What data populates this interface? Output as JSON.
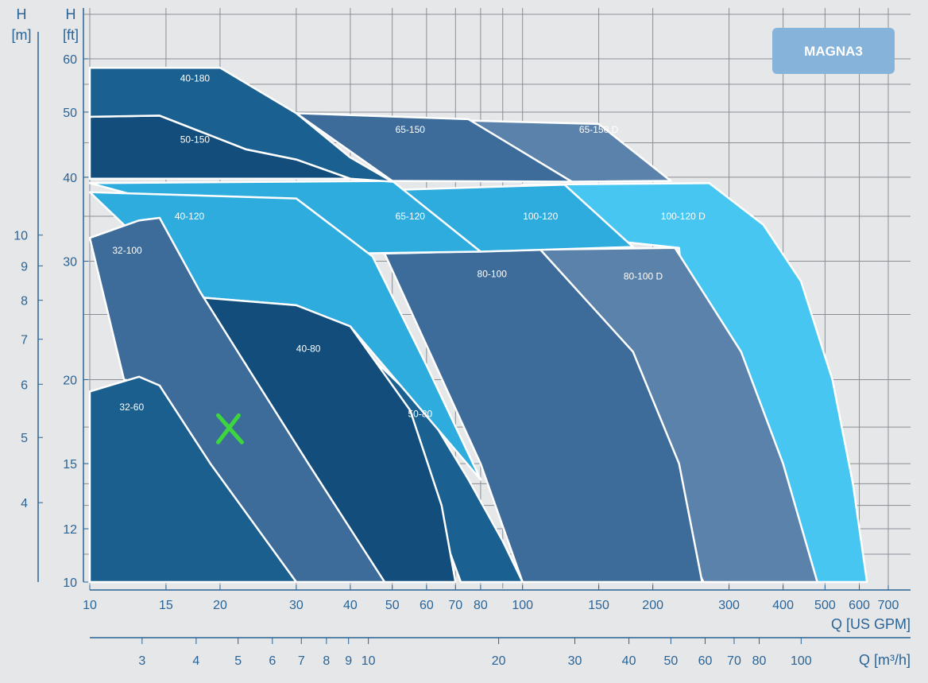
{
  "chart_data": {
    "type": "area",
    "badge": "MAGNA3",
    "x_axis": {
      "label": "Q [US GPM]",
      "scale": "log",
      "range": [
        10,
        700
      ],
      "ticks": [
        10,
        15,
        20,
        30,
        40,
        50,
        60,
        70,
        80,
        100,
        150,
        200,
        300,
        400,
        500,
        600,
        700
      ],
      "gridlines": [
        10,
        15,
        20,
        30,
        40,
        50,
        60,
        70,
        80,
        90,
        100,
        150,
        200,
        300,
        400,
        500,
        600,
        700
      ]
    },
    "x2_axis": {
      "label": "Q [m³/h]",
      "scale": "log",
      "ticks": [
        3,
        4,
        5,
        6,
        7,
        8,
        9,
        10,
        20,
        30,
        40,
        50,
        60,
        70,
        80,
        100
      ]
    },
    "y_axis": {
      "label_unit": "H",
      "label_dim": "[ft]",
      "scale": "log",
      "range": [
        10,
        60
      ],
      "ticks": [
        10,
        12,
        15,
        20,
        30,
        40,
        50,
        60
      ],
      "gridlines": [
        10,
        12,
        15,
        20,
        25,
        30,
        40,
        50,
        60
      ]
    },
    "y2_axis": {
      "label_unit": "H",
      "label_dim": "[m]",
      "scale": "log",
      "ticks": [
        4,
        5,
        6,
        7,
        8,
        9,
        10
      ]
    },
    "grid": true,
    "marker": {
      "label": "X",
      "x": 21,
      "y": 16.9,
      "color": "#3dd63d"
    },
    "series": [
      {
        "name": "100-120 D",
        "color": "#48c6f2",
        "label_at": [
          235,
          34.6
        ],
        "points": [
          [
            100,
            39.0
          ],
          [
            270,
            39.2
          ],
          [
            360,
            34
          ],
          [
            440,
            28
          ],
          [
            520,
            20
          ],
          [
            580,
            14
          ],
          [
            625,
            10
          ],
          [
            270,
            10
          ],
          [
            230,
            31.4
          ],
          [
            160,
            32.2
          ]
        ]
      },
      {
        "name": "80-100 D",
        "color": "#5b82aa",
        "label_at": [
          190,
          28.2
        ],
        "points": [
          [
            100,
            31.2
          ],
          [
            225,
            31.4
          ],
          [
            320,
            22
          ],
          [
            400,
            15
          ],
          [
            480,
            10
          ],
          [
            262,
            10
          ],
          [
            110,
            30.5
          ]
        ]
      },
      {
        "name": "80-100",
        "color": "#3d6c9b",
        "label_at": [
          85,
          28.4
        ],
        "points": [
          [
            48,
            30.8
          ],
          [
            110,
            31.2
          ],
          [
            180,
            22
          ],
          [
            230,
            15
          ],
          [
            260,
            10
          ],
          [
            100,
            10
          ],
          [
            80,
            15
          ]
        ]
      },
      {
        "name": "65-150 D",
        "color": "#5b82aa",
        "label_at": [
          150,
          46.6
        ],
        "points": [
          [
            72,
            48.6
          ],
          [
            150,
            48.0
          ],
          [
            220,
            39.5
          ],
          [
            130,
            39.4
          ]
        ]
      },
      {
        "name": "65-150",
        "color": "#3d6c9b",
        "label_at": [
          55,
          46.6
        ],
        "points": [
          [
            30,
            49.8
          ],
          [
            75,
            48.8
          ],
          [
            130,
            39.4
          ],
          [
            50,
            39.5
          ]
        ]
      },
      {
        "name": "100-120",
        "color": "#2eacde",
        "label_at": [
          110,
          34.6
        ],
        "points": [
          [
            50,
            38.3
          ],
          [
            125,
            39.0
          ],
          [
            180,
            31.5
          ],
          [
            80,
            31.0
          ]
        ]
      },
      {
        "name": "65-120",
        "color": "#2eacde",
        "label_at": [
          55,
          34.6
        ],
        "points": [
          [
            10,
            39.2
          ],
          [
            50,
            39.5
          ],
          [
            80,
            31.0
          ],
          [
            40,
            30.8
          ]
        ]
      },
      {
        "name": "50-80",
        "color": "#1a6090",
        "label_at": [
          58,
          17.6
        ],
        "points": [
          [
            30,
            24.2
          ],
          [
            45,
            21.5
          ],
          [
            60,
            18.0
          ],
          [
            75,
            14.2
          ],
          [
            90,
            11.5
          ],
          [
            100,
            10
          ],
          [
            72,
            10
          ],
          [
            55,
            16
          ]
        ]
      },
      {
        "name": "40-120",
        "color": "#2eacde",
        "label_at": [
          17,
          34.6
        ],
        "points": [
          [
            10,
            38.0
          ],
          [
            30,
            37.2
          ],
          [
            45,
            30.5
          ],
          [
            60,
            21
          ],
          [
            80,
            14.2
          ],
          [
            40,
            24.0
          ],
          [
            30,
            25.8
          ],
          [
            18,
            26.5
          ]
        ]
      },
      {
        "name": "40-80",
        "color": "#124d7b",
        "label_at": [
          32,
          22.0
        ],
        "points": [
          [
            18,
            26.5
          ],
          [
            30,
            25.8
          ],
          [
            40,
            24.0
          ],
          [
            55,
            18
          ],
          [
            65,
            13
          ],
          [
            70,
            10
          ],
          [
            48,
            10
          ],
          [
            30,
            15.5
          ],
          [
            23,
            21
          ]
        ]
      },
      {
        "name": "32-100",
        "color": "#3d6c9b",
        "label_at": [
          12.2,
          30.8
        ],
        "points": [
          [
            10,
            32.5
          ],
          [
            13,
            34.5
          ],
          [
            14.5,
            34.8
          ],
          [
            18,
            27
          ],
          [
            23,
            21
          ],
          [
            32,
            15
          ],
          [
            48,
            10
          ],
          [
            30,
            10
          ],
          [
            21,
            13
          ],
          [
            14.5,
            19.6
          ],
          [
            12,
            20
          ]
        ]
      },
      {
        "name": "32-60",
        "color": "#1a5f8e",
        "label_at": [
          12.5,
          18.0
        ],
        "points": [
          [
            10,
            19.2
          ],
          [
            13,
            20.2
          ],
          [
            14.5,
            19.6
          ],
          [
            19,
            15
          ],
          [
            30,
            10
          ],
          [
            10,
            10
          ]
        ]
      },
      {
        "name": "50-150",
        "color": "#124d7b",
        "label_at": [
          17.5,
          45.0
        ],
        "points": [
          [
            10,
            49.2
          ],
          [
            14.5,
            49.4
          ],
          [
            23,
            44.0
          ],
          [
            30,
            42.5
          ],
          [
            40,
            39.8
          ],
          [
            10,
            39.8
          ]
        ]
      },
      {
        "name": "40-180",
        "color": "#1a6090",
        "label_at": [
          17.5,
          55.5
        ],
        "points": [
          [
            10,
            58.2
          ],
          [
            20,
            58.2
          ],
          [
            30,
            49.8
          ],
          [
            40,
            42.8
          ],
          [
            50,
            39.4
          ],
          [
            40,
            39.8
          ],
          [
            30,
            42.5
          ],
          [
            23,
            44.0
          ],
          [
            14.5,
            49.4
          ],
          [
            10,
            49.2
          ]
        ]
      }
    ]
  }
}
